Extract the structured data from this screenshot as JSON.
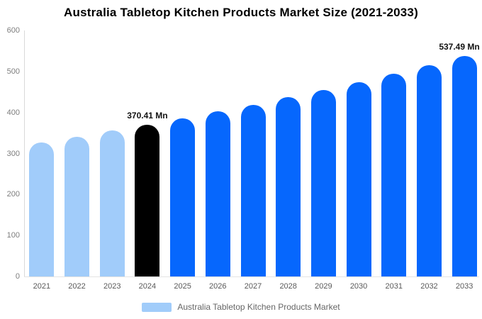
{
  "title": "Australia Tabletop Kitchen Products Market Size (2021-2033)",
  "legend": {
    "label": "Australia Tabletop Kitchen Products Market",
    "swatch_color": "#a1ccfa"
  },
  "colors": {
    "historical_bar": "#a1ccfa",
    "highlight_bar": "#000000",
    "forecast_bar": "#0667fd",
    "axis_line": "#d9d9d9",
    "baseline": "#e3e3e3",
    "tick_text": "#7d7d7d",
    "xlabel_text": "#595959",
    "annotation_text": "#111111",
    "legend_text": "#666666"
  },
  "chart_data": {
    "type": "bar",
    "title": "Australia Tabletop Kitchen Products Market Size (2021-2033)",
    "xlabel": "",
    "ylabel": "",
    "categories": [
      "2021",
      "2022",
      "2023",
      "2024",
      "2025",
      "2026",
      "2027",
      "2028",
      "2029",
      "2030",
      "2031",
      "2032",
      "2033"
    ],
    "values": [
      327.2,
      341.0,
      355.4,
      370.41,
      386.0,
      402.3,
      419.3,
      437.0,
      455.4,
      474.6,
      494.7,
      515.6,
      537.49
    ],
    "bar_colors": [
      "#a1ccfa",
      "#a1ccfa",
      "#a1ccfa",
      "#000000",
      "#0667fd",
      "#0667fd",
      "#0667fd",
      "#0667fd",
      "#0667fd",
      "#0667fd",
      "#0667fd",
      "#0667fd",
      "#0667fd"
    ],
    "annotations": [
      {
        "category": "2024",
        "text": "370.41 Mn"
      },
      {
        "category": "2033",
        "text": "537.49 Mn"
      }
    ],
    "ylim": [
      0,
      600
    ],
    "yticks": [
      0,
      100,
      200,
      300,
      400,
      500,
      600
    ],
    "grid": false,
    "legend_position": "bottom",
    "legend_entries": [
      "Australia Tabletop Kitchen Products Market"
    ]
  }
}
